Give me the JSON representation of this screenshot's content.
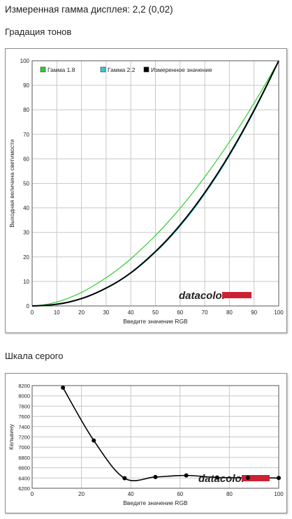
{
  "header": {
    "title": "Измеренная гамма дисплея: 2,2 (0,02)",
    "section1": "Градация тонов",
    "section2": "Шкала серого"
  },
  "watermark": "datacolor",
  "colors": {
    "gamma18": "#33cc33",
    "gamma22": "#33cccc",
    "measured": "#000000",
    "grid": "#c8c8c8",
    "brand_bar": "#cc2233"
  },
  "chart_data": [
    {
      "type": "line",
      "xlabel": "Введите значение RGB",
      "ylabel": "Выходная величина светимости",
      "xlim": [
        0,
        100
      ],
      "ylim": [
        0,
        100
      ],
      "x_ticks": [
        0,
        10,
        20,
        30,
        40,
        50,
        60,
        70,
        80,
        90,
        100
      ],
      "y_ticks": [
        0,
        10,
        20,
        30,
        40,
        50,
        60,
        70,
        80,
        90,
        100
      ],
      "grid": true,
      "legend_position": "top-left",
      "x": [
        0,
        5,
        10,
        15,
        20,
        25,
        30,
        35,
        40,
        45,
        50,
        55,
        60,
        65,
        70,
        75,
        80,
        85,
        90,
        95,
        100
      ],
      "series": [
        {
          "name": "Гамма 1.8",
          "color": "#33cc33",
          "values": [
            0,
            0.5,
            1.6,
            3.3,
            5.5,
            8.3,
            11.5,
            15.1,
            19.2,
            23.8,
            28.7,
            34.1,
            39.8,
            46.0,
            52.6,
            59.6,
            66.9,
            74.6,
            82.7,
            91.2,
            100
          ]
        },
        {
          "name": "Гамма 2.2",
          "color": "#33cccc",
          "values": [
            0,
            0.1,
            0.6,
            1.5,
            2.9,
            4.8,
            7.1,
            9.9,
            13.3,
            17.3,
            21.8,
            26.8,
            32.5,
            38.7,
            45.6,
            53.1,
            61.2,
            70.0,
            79.3,
            89.3,
            100
          ]
        },
        {
          "name": "Измеренное значение",
          "color": "#000000",
          "values": [
            0,
            0.2,
            0.7,
            1.6,
            3.0,
            4.9,
            7.3,
            10.1,
            13.5,
            17.6,
            22.2,
            27.3,
            33.0,
            39.3,
            46.2,
            53.7,
            61.8,
            70.5,
            79.8,
            89.7,
            100
          ]
        }
      ]
    },
    {
      "type": "line",
      "xlabel": "Введите значение RGB",
      "ylabel": "Кельвину",
      "xlim": [
        0,
        100
      ],
      "ylim": [
        6200,
        8200
      ],
      "x_ticks": [
        0,
        20,
        40,
        60,
        80,
        100
      ],
      "y_ticks": [
        6200,
        6400,
        6600,
        6800,
        7000,
        7200,
        7400,
        7600,
        7800,
        8000,
        8200
      ],
      "grid": true,
      "series": [
        {
          "name": "",
          "color": "#000000",
          "x": [
            12.5,
            25,
            37.5,
            50,
            62.5,
            75,
            87.5,
            100
          ],
          "values": [
            8160,
            7130,
            6395,
            6420,
            6450,
            6410,
            6405,
            6400
          ]
        }
      ]
    }
  ]
}
